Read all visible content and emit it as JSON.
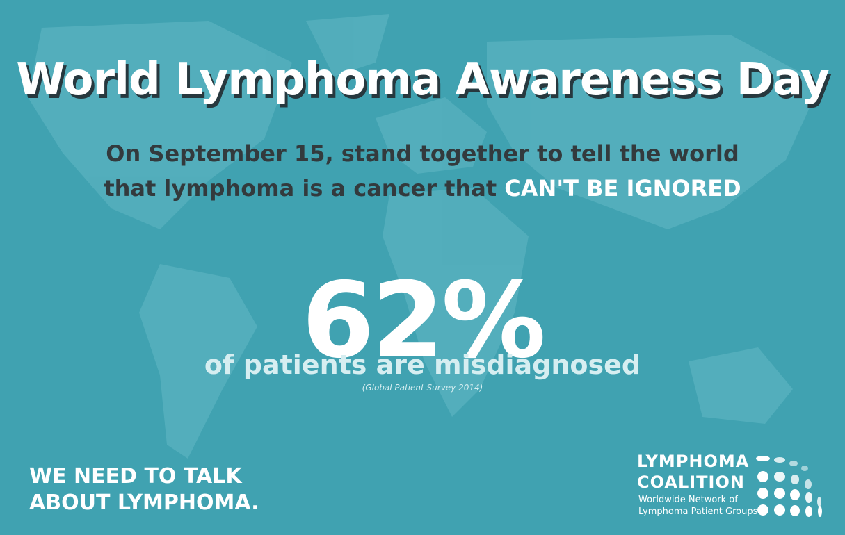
{
  "header": {
    "title": "World Lymphoma Awareness Day",
    "subtitle": {
      "line1": "On September 15, stand together to tell the world",
      "line2": "that lymphoma is a cancer that",
      "emphasis": "CAN'T BE IGNORED"
    }
  },
  "stat": {
    "value": "62%",
    "caption": "of patients are misdiagnosed",
    "source": "(Global Patient Survey 2014)"
  },
  "footer": {
    "lines": [
      "WE NEED TO TALK",
      "ABOUT LYMPHOMA."
    ]
  },
  "logo": {
    "name": [
      "LYMPHOMA",
      "COALITION"
    ],
    "tagline": [
      "Worldwide Network of",
      "Lymphoma Patient Groups"
    ]
  }
}
